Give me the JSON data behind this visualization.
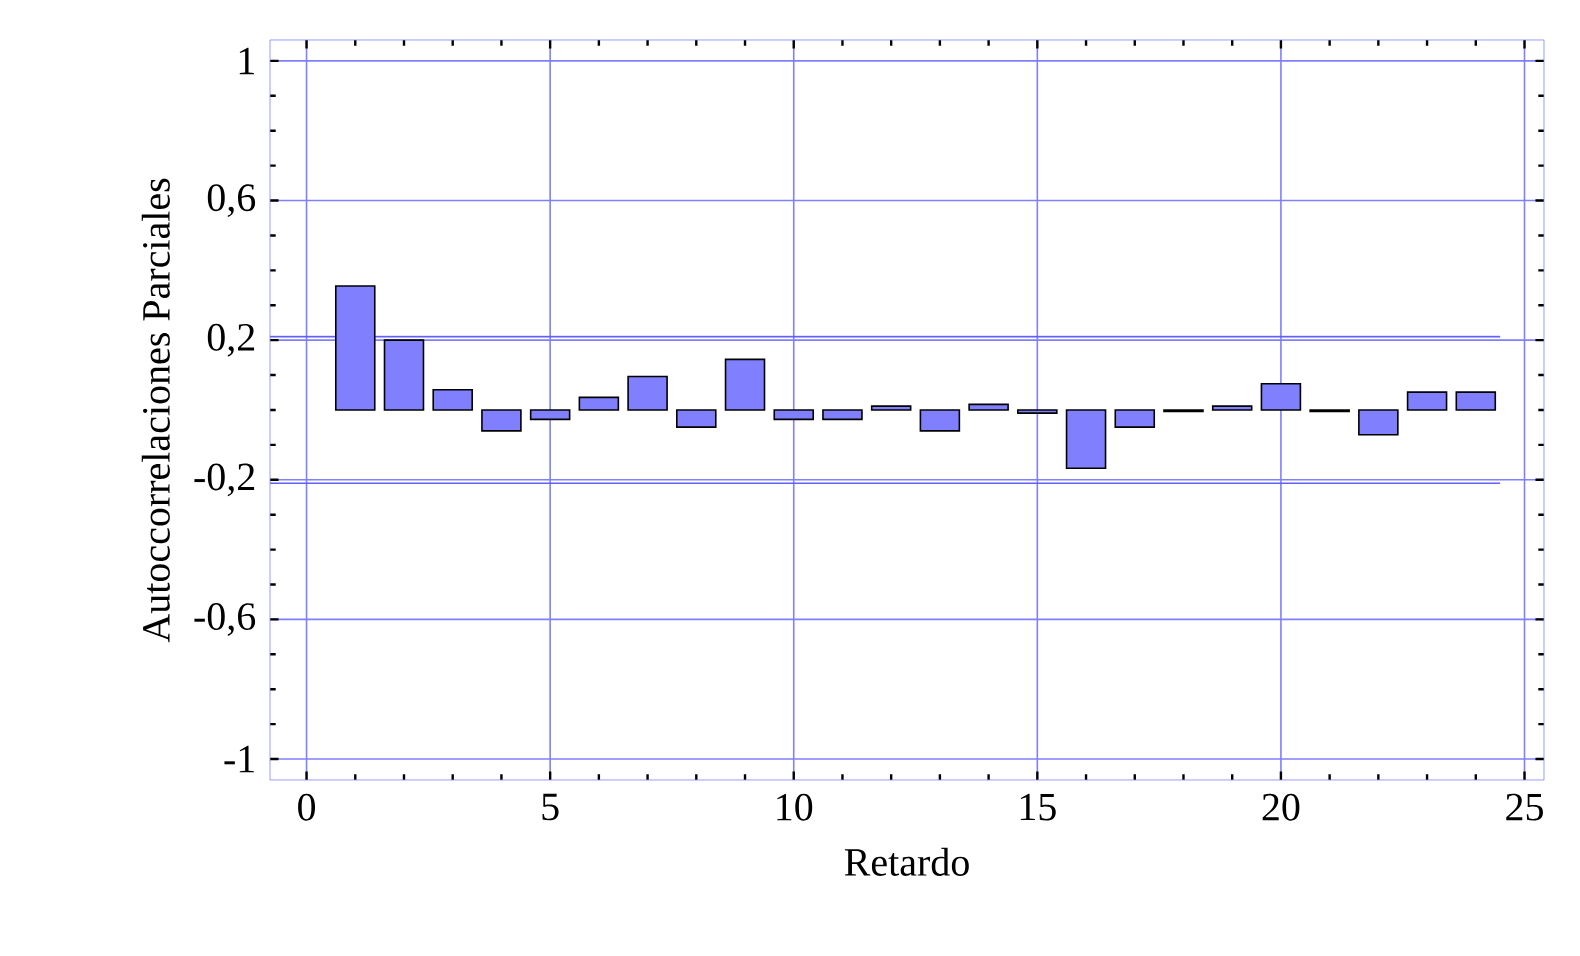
{
  "chart_data": {
    "type": "bar",
    "xlabel": "Retardo",
    "ylabel": "Autoccorrelaciones Parciales",
    "x": [
      1,
      2,
      3,
      4,
      5,
      6,
      7,
      8,
      9,
      10,
      11,
      12,
      13,
      14,
      15,
      16,
      17,
      18,
      19,
      20,
      21,
      22,
      23,
      24
    ],
    "values": [
      0.355,
      0.2,
      0.058,
      -0.06,
      -0.027,
      0.036,
      0.096,
      -0.049,
      0.145,
      -0.027,
      -0.027,
      0.011,
      -0.06,
      0.016,
      -0.009,
      -0.167,
      -0.049,
      -0.004,
      0.011,
      0.075,
      -0.004,
      -0.071,
      0.051,
      0.051
    ],
    "color": "#8080ff",
    "xlim": [
      -0.75,
      25.4
    ],
    "ylim": [
      -1.06,
      1.06
    ],
    "xticks": [
      0,
      5,
      10,
      15,
      20,
      25
    ],
    "yticks": [
      {
        "value": 1,
        "label": "1"
      },
      {
        "value": 0.6,
        "label": "0,6"
      },
      {
        "value": 0.2,
        "label": "0,2"
      },
      {
        "value": -0.2,
        "label": "-0,2"
      },
      {
        "value": -0.6,
        "label": "-0,6"
      },
      {
        "value": -1,
        "label": "-1"
      }
    ],
    "grid": true,
    "ref_lines": [
      {
        "axis": "y",
        "value": 0.21,
        "color": "#6060ff"
      },
      {
        "axis": "y",
        "value": -0.21,
        "color": "#6060ff"
      }
    ]
  }
}
